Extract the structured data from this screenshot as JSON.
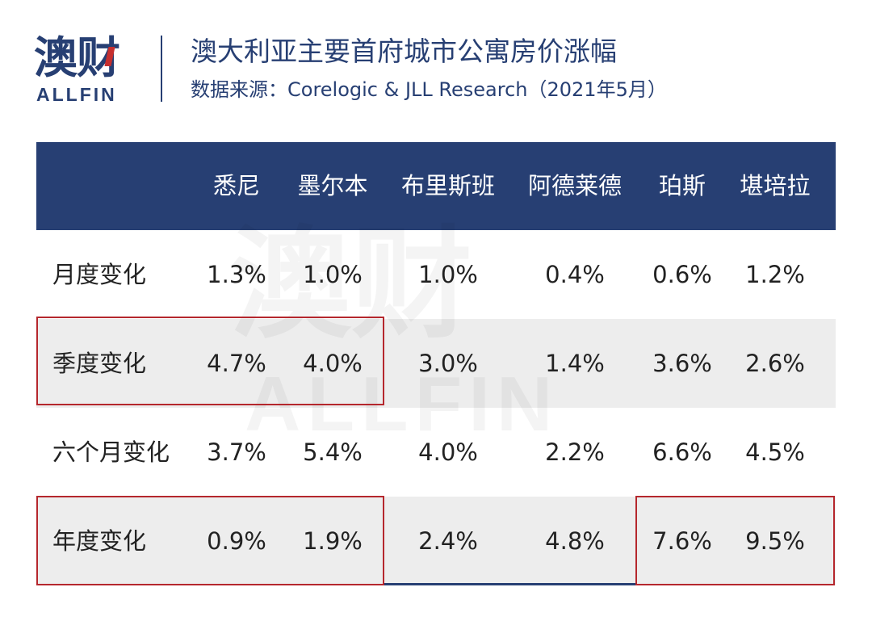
{
  "header": {
    "logo_cn": "澳财",
    "logo_en": "ALLFIN",
    "title": "澳大利亚主要首府城市公寓房价涨幅",
    "source": "数据来源：Corelogic & JLL Research（2021年5月）"
  },
  "watermark": {
    "cn": "澳财",
    "en": "ALLFIN"
  },
  "colors": {
    "header_bg": "#273f73",
    "highlight": "#b5272d",
    "shade": "#ededed"
  },
  "chart_data": {
    "type": "table",
    "title": "澳大利亚主要首府城市公寓房价涨幅",
    "subtitle": "数据来源：Corelogic & JLL Research（2021年5月）",
    "columns": [
      "悉尼",
      "墨尔本",
      "布里斯班",
      "阿德莱德",
      "珀斯",
      "堪培拉"
    ],
    "rows": [
      {
        "label": "月度变化",
        "values": [
          "1.3%",
          "1.0%",
          "1.0%",
          "0.4%",
          "0.6%",
          "1.2%"
        ]
      },
      {
        "label": "季度变化",
        "values": [
          "4.7%",
          "4.0%",
          "3.0%",
          "1.4%",
          "3.6%",
          "2.6%"
        ]
      },
      {
        "label": "六个月变化",
        "values": [
          "3.7%",
          "5.4%",
          "4.0%",
          "2.2%",
          "6.6%",
          "4.5%"
        ]
      },
      {
        "label": "年度变化",
        "values": [
          "0.9%",
          "1.9%",
          "2.4%",
          "4.8%",
          "7.6%",
          "9.5%"
        ]
      }
    ]
  }
}
